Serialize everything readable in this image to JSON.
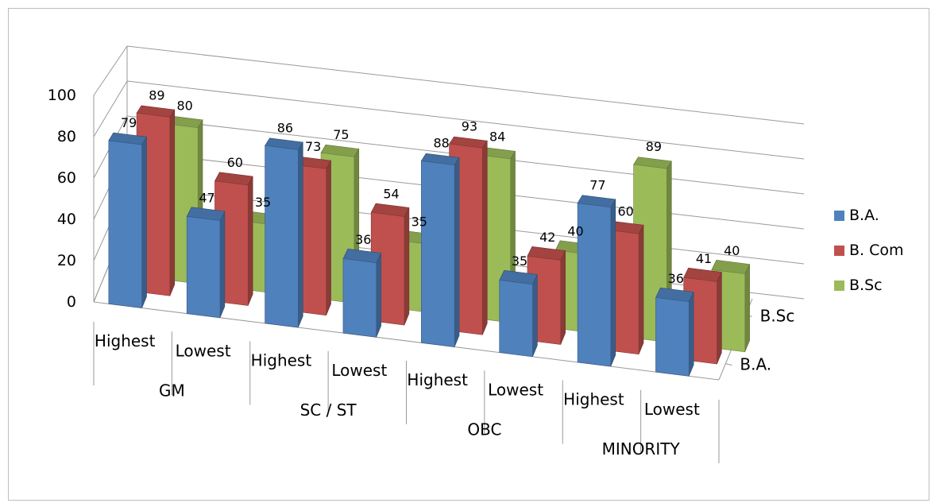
{
  "chart_data": {
    "type": "bar",
    "subtype": "3d-clustered-column",
    "groups": [
      "GM",
      "SC / ST",
      "OBC",
      "MINORITY"
    ],
    "categories": [
      {
        "group": "GM",
        "level": "Highest"
      },
      {
        "group": "GM",
        "level": "Lowest"
      },
      {
        "group": "SC / ST",
        "level": "Highest"
      },
      {
        "group": "SC / ST",
        "level": "Lowest"
      },
      {
        "group": "OBC",
        "level": "Highest"
      },
      {
        "group": "OBC",
        "level": "Lowest"
      },
      {
        "group": "MINORITY",
        "level": "Highest"
      },
      {
        "group": "MINORITY",
        "level": "Lowest"
      }
    ],
    "series": [
      {
        "name": "B.A.",
        "color": "#4f81bd",
        "values": [
          79,
          47,
          86,
          36,
          88,
          35,
          77,
          36
        ]
      },
      {
        "name": "B. Com",
        "color": "#c0504d",
        "values": [
          89,
          60,
          73,
          54,
          93,
          42,
          60,
          41
        ]
      },
      {
        "name": "B.Sc",
        "color": "#9bbb59",
        "values": [
          80,
          35,
          75,
          35,
          84,
          40,
          89,
          40
        ]
      }
    ],
    "yticks": [
      "0",
      "20",
      "40",
      "60",
      "80",
      "100"
    ],
    "ylim": [
      0,
      100
    ],
    "depth_axis_labels": [
      "B.A.",
      "B.Sc"
    ],
    "grid": true,
    "legend_position": "right",
    "title": "",
    "xlabel": "",
    "ylabel": ""
  }
}
